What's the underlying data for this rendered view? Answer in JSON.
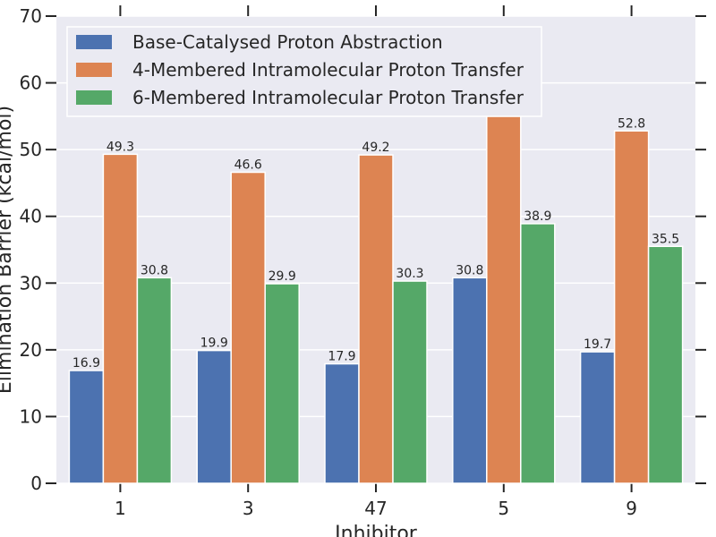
{
  "chart_data": {
    "type": "bar",
    "xlabel": "Inhibitor",
    "ylabel": "Elimination Barrier (kcal/mol)",
    "categories": [
      "1",
      "3",
      "47",
      "5",
      "9"
    ],
    "series": [
      {
        "name": "Base-Catalysed Proton Abstraction",
        "color": "#4c72b0",
        "values": [
          16.9,
          19.9,
          17.9,
          30.8,
          19.7
        ]
      },
      {
        "name": "4-Membered Intramolecular Proton Transfer",
        "color": "#dd8452",
        "values": [
          49.3,
          46.6,
          49.2,
          55.0,
          52.8
        ]
      },
      {
        "name": "6-Membered Intramolecular Proton Transfer",
        "color": "#55a868",
        "values": [
          30.8,
          29.9,
          30.3,
          38.9,
          35.5
        ]
      }
    ],
    "data_labels": [
      [
        "16.9",
        "19.9",
        "17.9",
        "30.8",
        "19.7"
      ],
      [
        "49.3",
        "46.6",
        "49.2",
        "",
        "52.8"
      ],
      [
        "30.8",
        "29.9",
        "30.3",
        "38.9",
        "35.5"
      ]
    ],
    "ylim": [
      0,
      70
    ],
    "yticks": [
      "0",
      "10",
      "20",
      "30",
      "40",
      "50",
      "60",
      "70"
    ],
    "grid": true,
    "legend_position": "top-left",
    "background_color": "#eaeaf2"
  }
}
